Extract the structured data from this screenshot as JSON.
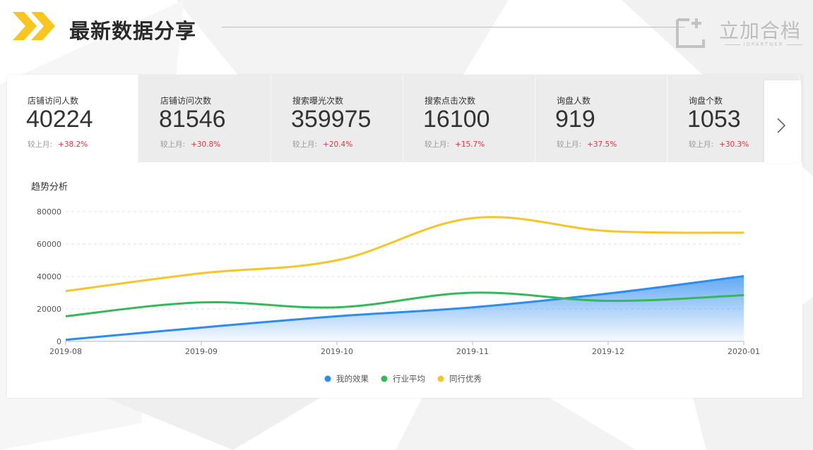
{
  "header": {
    "title": "最新数据分享",
    "logo_text": "立加合档",
    "logo_sub": "IDPARTNER"
  },
  "colors": {
    "accent": "#f9c51e",
    "my_effect": "#2d8cf0",
    "industry_avg": "#36b85a",
    "peer_best": "#f5c52a",
    "increase": "#e0383e"
  },
  "tabs": [
    {
      "label": "店铺访问人数",
      "value": "40224",
      "compare_label": "较上月:",
      "change": "+38.2%"
    },
    {
      "label": "店铺访问次数",
      "value": "81546",
      "compare_label": "较上月:",
      "change": "+30.8%"
    },
    {
      "label": "搜索曝光次数",
      "value": "359975",
      "compare_label": "较上月:",
      "change": "+20.4%"
    },
    {
      "label": "搜索点击次数",
      "value": "16100",
      "compare_label": "较上月:",
      "change": "+15.7%"
    },
    {
      "label": "询盘人数",
      "value": "919",
      "compare_label": "较上月:",
      "change": "+37.5%"
    },
    {
      "label": "询盘个数",
      "value": "1053",
      "compare_label": "较上月:",
      "change": "+30.3%"
    }
  ],
  "next_icon": "chevron-right-icon",
  "chart_data": {
    "type": "line",
    "title": "趋势分析",
    "categories": [
      "2019-08",
      "2019-09",
      "2019-10",
      "2019-11",
      "2019-12",
      "2020-01"
    ],
    "yticks": [
      "0",
      "20000",
      "40000",
      "60000",
      "80000"
    ],
    "ylim": [
      0,
      80000
    ],
    "grid": true,
    "legend_position": "bottom",
    "series": [
      {
        "name": "我的效果",
        "values": [
          1000,
          8500,
          15500,
          21000,
          29500,
          40200
        ],
        "color": "#2d8cf0",
        "area": true
      },
      {
        "name": "行业平均",
        "values": [
          15500,
          24000,
          21000,
          30000,
          25000,
          28500
        ],
        "color": "#36b85a",
        "area": false
      },
      {
        "name": "同行优秀",
        "values": [
          31000,
          42000,
          50000,
          76000,
          68000,
          67000
        ],
        "color": "#f5c52a",
        "area": false
      }
    ]
  }
}
